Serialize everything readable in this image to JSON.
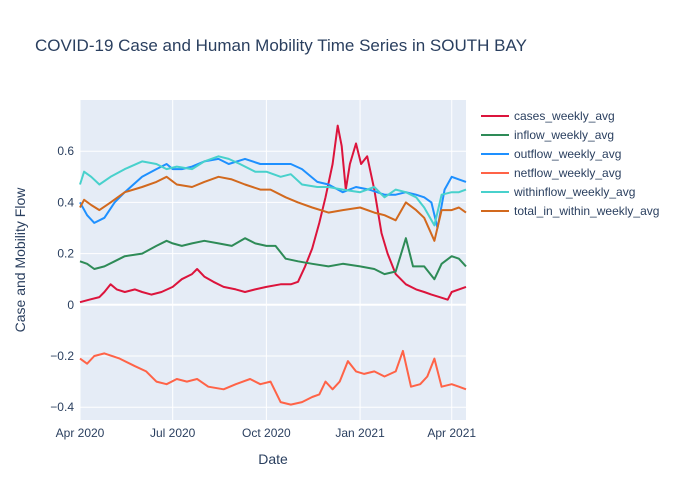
{
  "chart_data": {
    "type": "line",
    "title": "COVID-19 Case and Human Mobility Time Series in SOUTH BAY",
    "xlabel": "Date",
    "ylabel": "Case and Mobility Flow",
    "xlim": [
      "2020-04-01",
      "2021-04-15"
    ],
    "ylim": [
      -0.45,
      0.8
    ],
    "x_ticks": [
      {
        "date": "2020-04-01",
        "label": "Apr 2020"
      },
      {
        "date": "2020-07-01",
        "label": "Jul 2020"
      },
      {
        "date": "2020-10-01",
        "label": "Oct 2020"
      },
      {
        "date": "2021-01-01",
        "label": "Jan 2021"
      },
      {
        "date": "2021-04-01",
        "label": "Apr 2021"
      }
    ],
    "y_ticks": [
      -0.4,
      -0.2,
      0,
      0.2,
      0.4,
      0.6
    ],
    "y_tick_labels": [
      "−0.4",
      "−0.2",
      "0",
      "0.2",
      "0.4",
      "0.6"
    ],
    "grid": true,
    "legend_position": "right",
    "plot_bg": "#e5ecf6",
    "series": [
      {
        "name": "cases_weekly_avg",
        "color": "#dc143c",
        "points": [
          [
            "2020-04-01",
            0.01
          ],
          [
            "2020-04-10",
            0.02
          ],
          [
            "2020-04-20",
            0.03
          ],
          [
            "2020-04-25",
            0.05
          ],
          [
            "2020-05-01",
            0.08
          ],
          [
            "2020-05-07",
            0.06
          ],
          [
            "2020-05-15",
            0.05
          ],
          [
            "2020-05-25",
            0.06
          ],
          [
            "2020-06-01",
            0.05
          ],
          [
            "2020-06-10",
            0.04
          ],
          [
            "2020-06-20",
            0.05
          ],
          [
            "2020-07-01",
            0.07
          ],
          [
            "2020-07-10",
            0.1
          ],
          [
            "2020-07-20",
            0.12
          ],
          [
            "2020-07-25",
            0.14
          ],
          [
            "2020-08-01",
            0.11
          ],
          [
            "2020-08-10",
            0.09
          ],
          [
            "2020-08-20",
            0.07
          ],
          [
            "2020-09-01",
            0.06
          ],
          [
            "2020-09-10",
            0.05
          ],
          [
            "2020-09-20",
            0.06
          ],
          [
            "2020-10-01",
            0.07
          ],
          [
            "2020-10-15",
            0.08
          ],
          [
            "2020-10-25",
            0.08
          ],
          [
            "2020-11-01",
            0.09
          ],
          [
            "2020-11-08",
            0.15
          ],
          [
            "2020-11-15",
            0.22
          ],
          [
            "2020-11-22",
            0.32
          ],
          [
            "2020-11-28",
            0.42
          ],
          [
            "2020-12-05",
            0.55
          ],
          [
            "2020-12-10",
            0.7
          ],
          [
            "2020-12-14",
            0.62
          ],
          [
            "2020-12-18",
            0.45
          ],
          [
            "2020-12-22",
            0.55
          ],
          [
            "2020-12-28",
            0.63
          ],
          [
            "2021-01-02",
            0.55
          ],
          [
            "2021-01-08",
            0.58
          ],
          [
            "2021-01-15",
            0.45
          ],
          [
            "2021-01-22",
            0.28
          ],
          [
            "2021-01-28",
            0.2
          ],
          [
            "2021-02-05",
            0.12
          ],
          [
            "2021-02-15",
            0.08
          ],
          [
            "2021-02-25",
            0.06
          ],
          [
            "2021-03-05",
            0.05
          ],
          [
            "2021-03-12",
            0.04
          ],
          [
            "2021-03-20",
            0.03
          ],
          [
            "2021-03-28",
            0.02
          ],
          [
            "2021-04-01",
            0.05
          ],
          [
            "2021-04-08",
            0.06
          ],
          [
            "2021-04-15",
            0.07
          ]
        ]
      },
      {
        "name": "inflow_weekly_avg",
        "color": "#2e8b57",
        "points": [
          [
            "2020-04-01",
            0.17
          ],
          [
            "2020-04-08",
            0.16
          ],
          [
            "2020-04-15",
            0.14
          ],
          [
            "2020-04-25",
            0.15
          ],
          [
            "2020-05-05",
            0.17
          ],
          [
            "2020-05-15",
            0.19
          ],
          [
            "2020-06-01",
            0.2
          ],
          [
            "2020-06-15",
            0.23
          ],
          [
            "2020-06-25",
            0.25
          ],
          [
            "2020-07-01",
            0.24
          ],
          [
            "2020-07-10",
            0.23
          ],
          [
            "2020-07-20",
            0.24
          ],
          [
            "2020-08-01",
            0.25
          ],
          [
            "2020-08-15",
            0.24
          ],
          [
            "2020-08-28",
            0.23
          ],
          [
            "2020-09-10",
            0.26
          ],
          [
            "2020-09-20",
            0.24
          ],
          [
            "2020-10-01",
            0.23
          ],
          [
            "2020-10-10",
            0.23
          ],
          [
            "2020-10-20",
            0.18
          ],
          [
            "2020-11-01",
            0.17
          ],
          [
            "2020-11-15",
            0.16
          ],
          [
            "2020-12-01",
            0.15
          ],
          [
            "2020-12-15",
            0.16
          ],
          [
            "2021-01-01",
            0.15
          ],
          [
            "2021-01-15",
            0.14
          ],
          [
            "2021-01-25",
            0.12
          ],
          [
            "2021-02-05",
            0.13
          ],
          [
            "2021-02-15",
            0.26
          ],
          [
            "2021-02-22",
            0.15
          ],
          [
            "2021-03-05",
            0.15
          ],
          [
            "2021-03-15",
            0.1
          ],
          [
            "2021-03-22",
            0.16
          ],
          [
            "2021-04-01",
            0.19
          ],
          [
            "2021-04-08",
            0.18
          ],
          [
            "2021-04-15",
            0.15
          ]
        ]
      },
      {
        "name": "outflow_weekly_avg",
        "color": "#1e90ff",
        "points": [
          [
            "2020-04-01",
            0.4
          ],
          [
            "2020-04-08",
            0.35
          ],
          [
            "2020-04-15",
            0.32
          ],
          [
            "2020-04-25",
            0.34
          ],
          [
            "2020-05-05",
            0.4
          ],
          [
            "2020-05-15",
            0.44
          ],
          [
            "2020-06-01",
            0.5
          ],
          [
            "2020-06-15",
            0.53
          ],
          [
            "2020-06-25",
            0.55
          ],
          [
            "2020-07-01",
            0.53
          ],
          [
            "2020-07-10",
            0.53
          ],
          [
            "2020-07-20",
            0.54
          ],
          [
            "2020-08-01",
            0.56
          ],
          [
            "2020-08-15",
            0.57
          ],
          [
            "2020-08-25",
            0.55
          ],
          [
            "2020-09-10",
            0.57
          ],
          [
            "2020-09-25",
            0.55
          ],
          [
            "2020-10-10",
            0.55
          ],
          [
            "2020-10-25",
            0.55
          ],
          [
            "2020-11-05",
            0.53
          ],
          [
            "2020-11-20",
            0.48
          ],
          [
            "2020-12-01",
            0.47
          ],
          [
            "2020-12-15",
            0.44
          ],
          [
            "2020-12-28",
            0.46
          ],
          [
            "2021-01-10",
            0.45
          ],
          [
            "2021-01-25",
            0.43
          ],
          [
            "2021-02-05",
            0.43
          ],
          [
            "2021-02-15",
            0.44
          ],
          [
            "2021-02-25",
            0.43
          ],
          [
            "2021-03-05",
            0.42
          ],
          [
            "2021-03-12",
            0.4
          ],
          [
            "2021-03-18",
            0.3
          ],
          [
            "2021-03-25",
            0.45
          ],
          [
            "2021-04-01",
            0.5
          ],
          [
            "2021-04-08",
            0.49
          ],
          [
            "2021-04-15",
            0.48
          ]
        ]
      },
      {
        "name": "netflow_weekly_avg",
        "color": "#ff6347",
        "points": [
          [
            "2020-04-01",
            -0.21
          ],
          [
            "2020-04-08",
            -0.23
          ],
          [
            "2020-04-15",
            -0.2
          ],
          [
            "2020-04-25",
            -0.19
          ],
          [
            "2020-05-10",
            -0.21
          ],
          [
            "2020-05-25",
            -0.24
          ],
          [
            "2020-06-05",
            -0.26
          ],
          [
            "2020-06-15",
            -0.3
          ],
          [
            "2020-06-25",
            -0.31
          ],
          [
            "2020-07-05",
            -0.29
          ],
          [
            "2020-07-15",
            -0.3
          ],
          [
            "2020-07-25",
            -0.29
          ],
          [
            "2020-08-05",
            -0.32
          ],
          [
            "2020-08-20",
            -0.33
          ],
          [
            "2020-09-01",
            -0.31
          ],
          [
            "2020-09-15",
            -0.29
          ],
          [
            "2020-09-25",
            -0.31
          ],
          [
            "2020-10-05",
            -0.3
          ],
          [
            "2020-10-15",
            -0.38
          ],
          [
            "2020-10-25",
            -0.39
          ],
          [
            "2020-11-05",
            -0.38
          ],
          [
            "2020-11-15",
            -0.36
          ],
          [
            "2020-11-22",
            -0.35
          ],
          [
            "2020-11-28",
            -0.3
          ],
          [
            "2020-12-05",
            -0.33
          ],
          [
            "2020-12-12",
            -0.3
          ],
          [
            "2020-12-20",
            -0.22
          ],
          [
            "2020-12-28",
            -0.26
          ],
          [
            "2021-01-05",
            -0.27
          ],
          [
            "2021-01-15",
            -0.26
          ],
          [
            "2021-01-25",
            -0.28
          ],
          [
            "2021-02-05",
            -0.26
          ],
          [
            "2021-02-12",
            -0.18
          ],
          [
            "2021-02-20",
            -0.32
          ],
          [
            "2021-03-01",
            -0.31
          ],
          [
            "2021-03-08",
            -0.28
          ],
          [
            "2021-03-15",
            -0.21
          ],
          [
            "2021-03-22",
            -0.32
          ],
          [
            "2021-04-01",
            -0.31
          ],
          [
            "2021-04-08",
            -0.32
          ],
          [
            "2021-04-15",
            -0.33
          ]
        ]
      },
      {
        "name": "withinflow_weekly_avg",
        "color": "#48d1cc",
        "points": [
          [
            "2020-04-01",
            0.47
          ],
          [
            "2020-04-05",
            0.52
          ],
          [
            "2020-04-12",
            0.5
          ],
          [
            "2020-04-20",
            0.47
          ],
          [
            "2020-05-01",
            0.5
          ],
          [
            "2020-05-15",
            0.53
          ],
          [
            "2020-06-01",
            0.56
          ],
          [
            "2020-06-15",
            0.55
          ],
          [
            "2020-06-25",
            0.53
          ],
          [
            "2020-07-05",
            0.54
          ],
          [
            "2020-07-20",
            0.53
          ],
          [
            "2020-08-01",
            0.56
          ],
          [
            "2020-08-15",
            0.58
          ],
          [
            "2020-08-25",
            0.57
          ],
          [
            "2020-09-05",
            0.55
          ],
          [
            "2020-09-20",
            0.52
          ],
          [
            "2020-10-01",
            0.52
          ],
          [
            "2020-10-15",
            0.5
          ],
          [
            "2020-10-25",
            0.51
          ],
          [
            "2020-11-05",
            0.47
          ],
          [
            "2020-11-20",
            0.46
          ],
          [
            "2020-12-01",
            0.46
          ],
          [
            "2020-12-15",
            0.45
          ],
          [
            "2021-01-01",
            0.44
          ],
          [
            "2021-01-15",
            0.46
          ],
          [
            "2021-01-25",
            0.42
          ],
          [
            "2021-02-05",
            0.45
          ],
          [
            "2021-02-15",
            0.44
          ],
          [
            "2021-02-25",
            0.42
          ],
          [
            "2021-03-05",
            0.38
          ],
          [
            "2021-03-15",
            0.31
          ],
          [
            "2021-03-22",
            0.43
          ],
          [
            "2021-04-01",
            0.44
          ],
          [
            "2021-04-08",
            0.44
          ],
          [
            "2021-04-15",
            0.45
          ]
        ]
      },
      {
        "name": "total_in_within_weekly_avg",
        "color": "#d2691e",
        "points": [
          [
            "2020-04-01",
            0.38
          ],
          [
            "2020-04-05",
            0.41
          ],
          [
            "2020-04-12",
            0.39
          ],
          [
            "2020-04-20",
            0.37
          ],
          [
            "2020-05-01",
            0.4
          ],
          [
            "2020-05-15",
            0.44
          ],
          [
            "2020-06-01",
            0.46
          ],
          [
            "2020-06-15",
            0.48
          ],
          [
            "2020-06-25",
            0.5
          ],
          [
            "2020-07-05",
            0.47
          ],
          [
            "2020-07-20",
            0.46
          ],
          [
            "2020-08-01",
            0.48
          ],
          [
            "2020-08-15",
            0.5
          ],
          [
            "2020-08-28",
            0.49
          ],
          [
            "2020-09-10",
            0.47
          ],
          [
            "2020-09-25",
            0.45
          ],
          [
            "2020-10-05",
            0.45
          ],
          [
            "2020-10-20",
            0.42
          ],
          [
            "2020-11-01",
            0.4
          ],
          [
            "2020-11-15",
            0.38
          ],
          [
            "2020-12-01",
            0.36
          ],
          [
            "2020-12-15",
            0.37
          ],
          [
            "2021-01-01",
            0.38
          ],
          [
            "2021-01-15",
            0.36
          ],
          [
            "2021-01-25",
            0.35
          ],
          [
            "2021-02-05",
            0.33
          ],
          [
            "2021-02-15",
            0.4
          ],
          [
            "2021-02-25",
            0.37
          ],
          [
            "2021-03-05",
            0.34
          ],
          [
            "2021-03-15",
            0.25
          ],
          [
            "2021-03-22",
            0.37
          ],
          [
            "2021-04-01",
            0.37
          ],
          [
            "2021-04-08",
            0.38
          ],
          [
            "2021-04-15",
            0.36
          ]
        ]
      }
    ]
  }
}
